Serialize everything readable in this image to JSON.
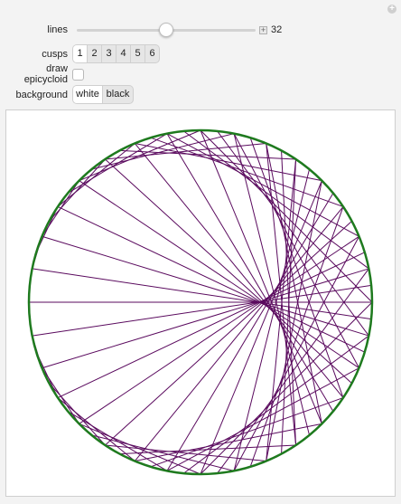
{
  "controls": {
    "lines": {
      "label": "lines",
      "value": "32",
      "plus_glyph": "+"
    },
    "cusps": {
      "label": "cusps",
      "options": [
        "1",
        "2",
        "3",
        "4",
        "5",
        "6"
      ],
      "selected": "1"
    },
    "draw_epicycloid": {
      "label": "draw epicycloid",
      "checked": false
    },
    "background": {
      "label": "background",
      "options": [
        "white",
        "black"
      ],
      "selected": "white"
    }
  },
  "corner_glyph": "+",
  "plot": {
    "cusps": 1,
    "lines_count": 32,
    "line_color": "#5a0a5e",
    "circle_color": "#1e7a1e",
    "background_color": "#ffffff"
  }
}
